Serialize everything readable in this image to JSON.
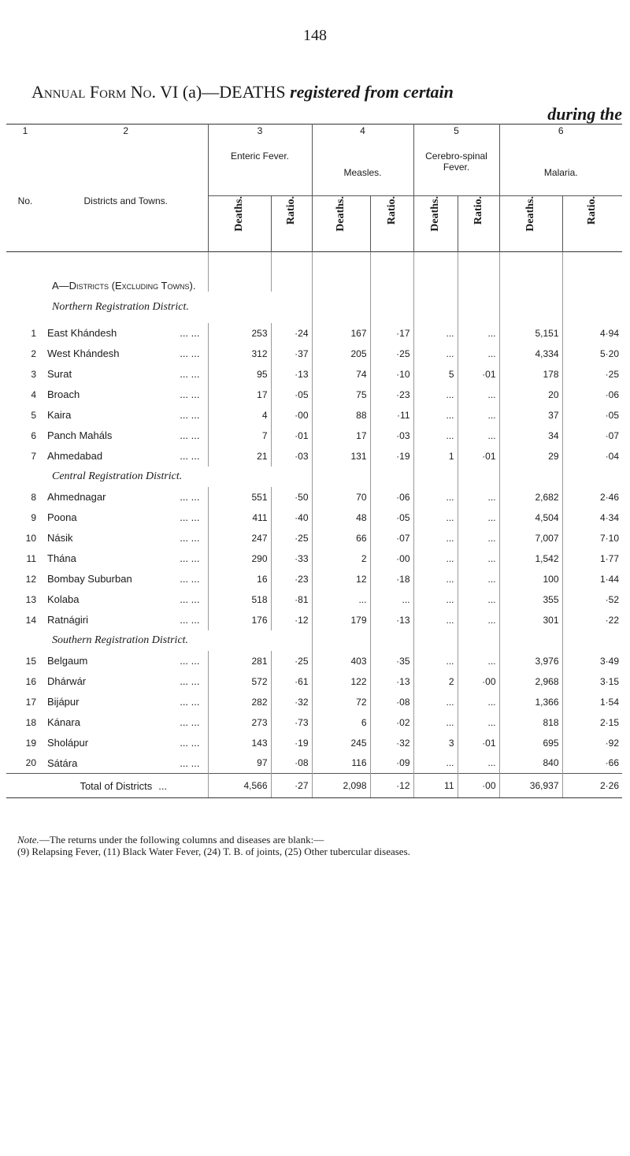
{
  "page_number": "148",
  "title": {
    "form": "Annual Form No. VI",
    "part": "(a)—DEATHS",
    "italic": "registered from certain",
    "line2": "during the"
  },
  "header": {
    "numbers": [
      "1",
      "2",
      "3",
      "4",
      "5",
      "6"
    ],
    "headings": [
      "No.",
      "Districts and Towns.",
      "Enteric Fever.",
      "Measles.",
      "Cerebro-spinal Fever.",
      "Malaria."
    ],
    "subheadings": [
      "Deaths.",
      "Ratio.",
      "Deaths.",
      "Ratio.",
      "Deaths.",
      "Ratio.",
      "Deaths.",
      "Ratio."
    ]
  },
  "table": {
    "body": [
      {
        "group": "A—Districts (Excluding Towns)."
      },
      {
        "region": "Northern Registration District."
      },
      {
        "no": "1",
        "name": "East Khándesh",
        "dots": "... ...",
        "cells": [
          "253",
          "·24",
          "167",
          "·17",
          "...",
          "...",
          "5,151",
          "4·94"
        ]
      },
      {
        "no": "2",
        "name": "West Khándesh",
        "dots": "... ...",
        "cells": [
          "312",
          "·37",
          "205",
          "·25",
          "...",
          "...",
          "4,334",
          "5·20"
        ]
      },
      {
        "no": "3",
        "name": "Surat",
        "dots": "... ...",
        "cells": [
          "95",
          "·13",
          "74",
          "·10",
          "5",
          "·01",
          "178",
          "·25"
        ]
      },
      {
        "no": "4",
        "name": "Broach",
        "dots": "... ...",
        "cells": [
          "17",
          "·05",
          "75",
          "·23",
          "...",
          "...",
          "20",
          "·06"
        ]
      },
      {
        "no": "5",
        "name": "Kaira",
        "dots": "... ...",
        "cells": [
          "4",
          "·00",
          "88",
          "·11",
          "...",
          "...",
          "37",
          "·05"
        ]
      },
      {
        "no": "6",
        "name": "Panch Maháls",
        "dots": "... ...",
        "cells": [
          "7",
          "·01",
          "17",
          "·03",
          "...",
          "...",
          "34",
          "·07"
        ]
      },
      {
        "no": "7",
        "name": "Ahmedabad",
        "dots": "... ...",
        "cells": [
          "21",
          "·03",
          "131",
          "·19",
          "1",
          "·01",
          "29",
          "·04"
        ]
      },
      {
        "region": "Central Registration District."
      },
      {
        "no": "8",
        "name": "Ahmednagar",
        "dots": "... ...",
        "cells": [
          "551",
          "·50",
          "70",
          "·06",
          "...",
          "...",
          "2,682",
          "2·46"
        ]
      },
      {
        "no": "9",
        "name": "Poona",
        "dots": "... ...",
        "cells": [
          "411",
          "·40",
          "48",
          "·05",
          "...",
          "...",
          "4,504",
          "4·34"
        ]
      },
      {
        "no": "10",
        "name": "Násik",
        "dots": "... ...",
        "cells": [
          "247",
          "·25",
          "66",
          "·07",
          "...",
          "...",
          "7,007",
          "7·10"
        ]
      },
      {
        "no": "11",
        "name": "Thána",
        "dots": "... ...",
        "cells": [
          "290",
          "·33",
          "2",
          "·00",
          "...",
          "...",
          "1,542",
          "1·77"
        ]
      },
      {
        "no": "12",
        "name": "Bombay Suburban",
        "dots": "... ...",
        "cells": [
          "16",
          "·23",
          "12",
          "·18",
          "...",
          "...",
          "100",
          "1·44"
        ]
      },
      {
        "no": "13",
        "name": "Kolaba",
        "dots": "... ...",
        "cells": [
          "518",
          "·81",
          "...",
          "...",
          "...",
          "...",
          "355",
          "·52"
        ]
      },
      {
        "no": "14",
        "name": "Ratnágiri",
        "dots": "... ...",
        "cells": [
          "176",
          "·12",
          "179",
          "·13",
          "...",
          "...",
          "301",
          "·22"
        ]
      },
      {
        "region": "Southern Registration District."
      },
      {
        "no": "15",
        "name": "Belgaum",
        "dots": "... ...",
        "cells": [
          "281",
          "·25",
          "403",
          "·35",
          "...",
          "...",
          "3,976",
          "3·49"
        ]
      },
      {
        "no": "16",
        "name": "Dhárwár",
        "dots": "... ...",
        "cells": [
          "572",
          "·61",
          "122",
          "·13",
          "2",
          "·00",
          "2,968",
          "3·15"
        ]
      },
      {
        "no": "17",
        "name": "Bijápur",
        "dots": "... ...",
        "cells": [
          "282",
          "·32",
          "72",
          "·08",
          "...",
          "...",
          "1,366",
          "1·54"
        ]
      },
      {
        "no": "18",
        "name": "Kánara",
        "dots": "... ...",
        "cells": [
          "273",
          "·73",
          "6",
          "·02",
          "...",
          "...",
          "818",
          "2·15"
        ]
      },
      {
        "no": "19",
        "name": "Sholápur",
        "dots": "... ...",
        "cells": [
          "143",
          "·19",
          "245",
          "·32",
          "3",
          "·01",
          "695",
          "·92"
        ]
      },
      {
        "no": "20",
        "name": "Sátára",
        "dots": "... ...",
        "cells": [
          "97",
          "·08",
          "116",
          "·09",
          "...",
          "...",
          "840",
          "·66"
        ]
      },
      {
        "total": "Total of Districts",
        "dots": "...",
        "cells": [
          "4,566",
          "·27",
          "2,098",
          "·12",
          "11",
          "·00",
          "36,937",
          "2·26"
        ]
      }
    ]
  },
  "note": {
    "label": "Note.",
    "text": "—The returns under the following columns and diseases are blank:—",
    "list": "(9) Relapsing Fever, (11) Black Water Fever, (24) T. B. of joints, (25) Other tubercular diseases."
  }
}
